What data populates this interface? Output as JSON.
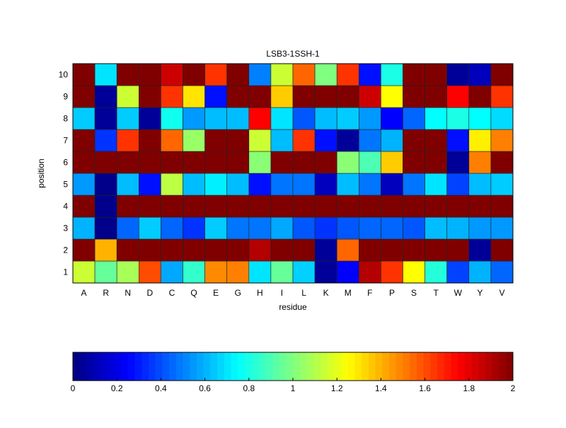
{
  "chart_data": {
    "type": "heatmap",
    "title": "LSB3-1SSH-1",
    "xlabel": "residue",
    "ylabel": "position",
    "x_categories": [
      "A",
      "R",
      "N",
      "D",
      "C",
      "Q",
      "E",
      "G",
      "H",
      "I",
      "L",
      "K",
      "M",
      "F",
      "P",
      "S",
      "T",
      "W",
      "Y",
      "V"
    ],
    "y_categories": [
      "1",
      "2",
      "3",
      "4",
      "5",
      "6",
      "7",
      "8",
      "9",
      "10"
    ],
    "colormap": "jet",
    "clim": [
      0,
      2
    ],
    "colorbar": {
      "placement": "bottom",
      "ticks": [
        0,
        0.2,
        0.4,
        0.6,
        0.8,
        1,
        1.2,
        1.4,
        1.6,
        1.8,
        2
      ],
      "tick_labels": [
        "0",
        "0.2",
        "0.4",
        "0.6",
        "0.8",
        "1",
        "1.2",
        "1.4",
        "1.6",
        "1.8",
        "2"
      ]
    },
    "values_by_position": {
      "1": [
        1.15,
        0.95,
        1.08,
        1.6,
        0.58,
        0.85,
        1.48,
        1.5,
        0.7,
        0.95,
        0.66,
        0.05,
        0.25,
        1.9,
        1.65,
        1.25,
        0.82,
        0.38,
        0.6,
        0.45
      ],
      "2": [
        2,
        1.4,
        2,
        2,
        2,
        2,
        2,
        2,
        1.9,
        2,
        2,
        0.05,
        1.55,
        2,
        2,
        2,
        2,
        2,
        0.05,
        2
      ],
      "3": [
        0.6,
        0.02,
        0.45,
        0.65,
        0.45,
        0.35,
        0.65,
        0.48,
        0.48,
        0.58,
        0.42,
        0.35,
        0.42,
        0.45,
        0.45,
        0.42,
        0.62,
        0.6,
        0.55,
        0.55
      ],
      "4": [
        2,
        0.02,
        2,
        2,
        2,
        2,
        2,
        2,
        2,
        2,
        2,
        2,
        2,
        2,
        2,
        2,
        2,
        2,
        2,
        2
      ],
      "5": [
        0.55,
        0.02,
        0.62,
        0.28,
        1.12,
        0.62,
        0.72,
        0.62,
        0.28,
        0.48,
        0.48,
        0.12,
        0.62,
        0.48,
        0.12,
        0.48,
        0.7,
        0.38,
        0.62,
        0.65
      ],
      "6": [
        2,
        2,
        2,
        2,
        2,
        2,
        2,
        2,
        1.02,
        2,
        2,
        2,
        1.02,
        0.9,
        1.35,
        2,
        2,
        0.05,
        1.5,
        2
      ],
      "7": [
        2,
        0.35,
        1.65,
        2,
        1.55,
        1.05,
        2,
        2,
        1.15,
        0.62,
        1.65,
        0.28,
        0.05,
        0.48,
        0.6,
        2,
        2,
        0.28,
        1.28,
        1.5
      ],
      "8": [
        0.65,
        0.05,
        0.65,
        0.05,
        0.78,
        0.55,
        0.62,
        0.62,
        1.75,
        0.7,
        0.42,
        0.62,
        0.65,
        0.55,
        0.25,
        0.45,
        0.75,
        0.8,
        0.75,
        0.68
      ],
      "9": [
        2,
        0.05,
        1.15,
        2,
        1.65,
        1.3,
        0.28,
        2,
        2,
        1.35,
        2,
        2,
        2,
        1.85,
        1.25,
        2,
        2,
        1.75,
        2,
        1.65
      ],
      "10": [
        2,
        0.7,
        2,
        2,
        1.85,
        2,
        1.65,
        2,
        0.5,
        1.15,
        1.55,
        1.0,
        1.65,
        0.28,
        0.8,
        2,
        2,
        0.05,
        0.12,
        2
      ]
    }
  }
}
